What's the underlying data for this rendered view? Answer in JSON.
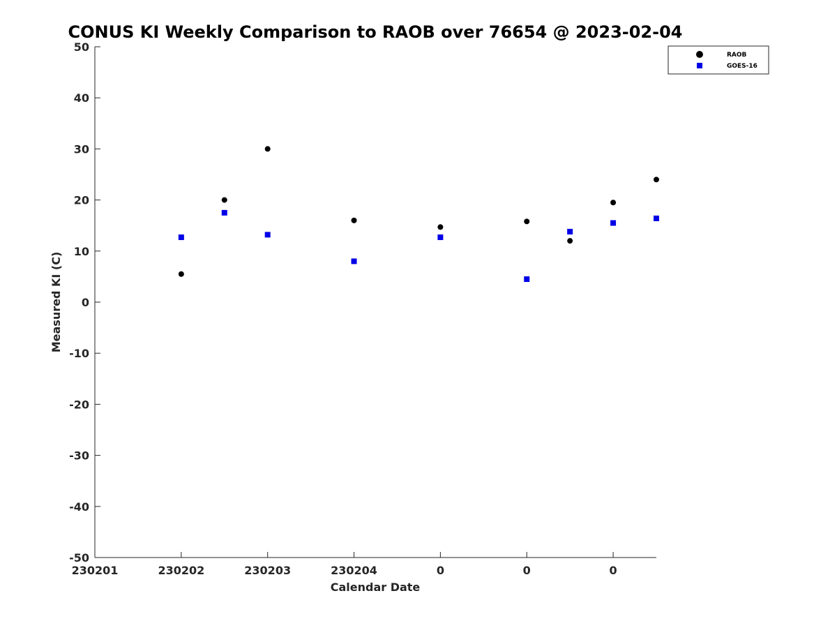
{
  "chart_data": {
    "type": "scatter",
    "title": "CONUS KI Weekly Comparison to RAOB over 76654 @ 2023-02-04",
    "xlabel": "Calendar Date",
    "ylabel": "Measured KI (C)",
    "xlim": [
      0,
      6.5
    ],
    "ylim": [
      -50,
      50
    ],
    "x_ticks": [
      {
        "value": 0,
        "label": "230201"
      },
      {
        "value": 1,
        "label": "230202"
      },
      {
        "value": 2,
        "label": "230203"
      },
      {
        "value": 3,
        "label": "230204"
      },
      {
        "value": 4,
        "label": "0"
      },
      {
        "value": 5,
        "label": "0"
      },
      {
        "value": 6,
        "label": "0"
      }
    ],
    "y_ticks": [
      50,
      40,
      30,
      20,
      10,
      0,
      -10,
      -20,
      -30,
      -40,
      -50
    ],
    "legend_position": "top-right",
    "grid": false,
    "series": [
      {
        "name": "RAOB",
        "marker": "circle",
        "color": "#000000",
        "points": [
          {
            "x": 1.0,
            "y": 5.5
          },
          {
            "x": 1.5,
            "y": 20.0
          },
          {
            "x": 2.0,
            "y": 30.0
          },
          {
            "x": 3.0,
            "y": 16.0
          },
          {
            "x": 4.0,
            "y": 14.7
          },
          {
            "x": 5.0,
            "y": 15.8
          },
          {
            "x": 5.5,
            "y": 12.0
          },
          {
            "x": 6.0,
            "y": 19.5
          },
          {
            "x": 6.5,
            "y": 24.0
          }
        ]
      },
      {
        "name": "GOES-16",
        "marker": "square",
        "color": "#0000e6",
        "points": [
          {
            "x": 1.0,
            "y": 12.7
          },
          {
            "x": 1.5,
            "y": 17.5
          },
          {
            "x": 2.0,
            "y": 13.2
          },
          {
            "x": 3.0,
            "y": 8.0
          },
          {
            "x": 4.0,
            "y": 12.7
          },
          {
            "x": 5.0,
            "y": 4.5
          },
          {
            "x": 5.5,
            "y": 13.8
          },
          {
            "x": 6.0,
            "y": 15.5
          },
          {
            "x": 6.5,
            "y": 16.4
          }
        ]
      }
    ]
  }
}
